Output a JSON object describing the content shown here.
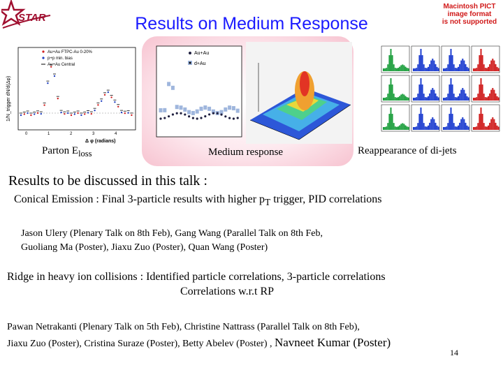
{
  "header": {
    "title": "Results on Medium Response",
    "logo_text": "STAR",
    "unsupported_image_notice": [
      "Macintosh PICT",
      "image format",
      "is not supported"
    ]
  },
  "figures": {
    "left_plot": {
      "caption_prefix": "Parton E",
      "caption_sub": "loss",
      "ylabel": "1/N_trigger dN/d(Δφ)",
      "xlabel": "Δ φ (radians)",
      "legend": [
        "Au+Au FTPC-Au 0-20%",
        "p+p min. bias",
        "Au+Au Central"
      ],
      "x_ticks": [
        "0",
        "1",
        "2",
        "3",
        "4"
      ]
    },
    "middle_plot": {
      "caption": "Medium response",
      "legend": [
        "Au+Au",
        "d+Au"
      ]
    },
    "right_plot": {
      "caption": "Reappearance of di-jets"
    }
  },
  "body": {
    "heading": "Results to be discussed in this talk  :",
    "conical": {
      "pre": "Conical Emission : Final 3-particle results with higher p",
      "sub": "T",
      "post": " trigger, PID correlations"
    },
    "conical_speakers_line1": "Jason Ulery (Plenary Talk on 8th Feb), Gang Wang (Parallel Talk on 8th Feb,",
    "conical_speakers_line2": "Guoliang Ma (Poster), Jiaxu Zuo (Poster), Quan Wang (Poster)",
    "ridge_line1": "Ridge in heavy ion collisions : Identified particle correlations, 3-particle correlations",
    "ridge_line2": "Correlations w.r.t RP",
    "ridge_speakers_line1": "Pawan Netrakanti (Plenary Talk on 5th Feb),  Christine Nattrass (Parallel Talk on  8th Feb),",
    "ridge_speakers_line2a": "Jiaxu Zuo (Poster), Cristina Suraze (Poster), Betty Abelev (Poster) , ",
    "ridge_speakers_line2b": "Navneet Kumar (Poster)"
  },
  "footer": {
    "page_number": "14"
  }
}
